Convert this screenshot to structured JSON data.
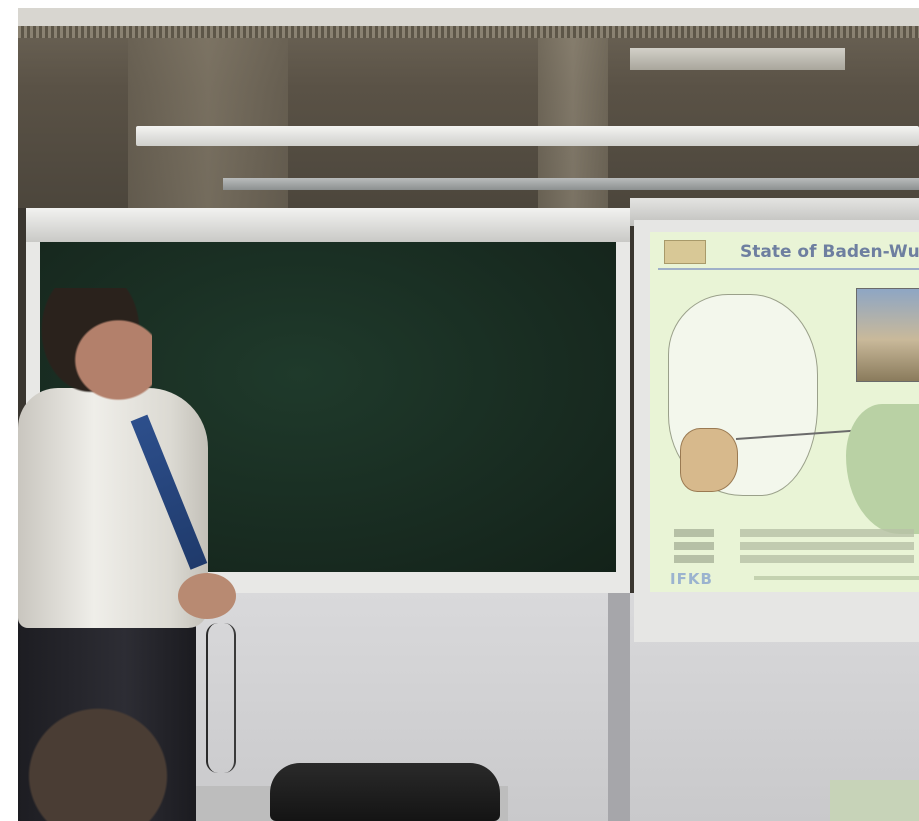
{
  "photo": {
    "description_subject": "photograph",
    "slide": {
      "title": "State of Baden-Wurtte",
      "logo_text": "IFKB"
    }
  },
  "colors": {
    "chalkboard": "#17291f",
    "slide_background": "#e9f4d6",
    "slide_title": "#6e7fa0",
    "shirt": "#efeee9",
    "tie": "#2d4f8c"
  }
}
